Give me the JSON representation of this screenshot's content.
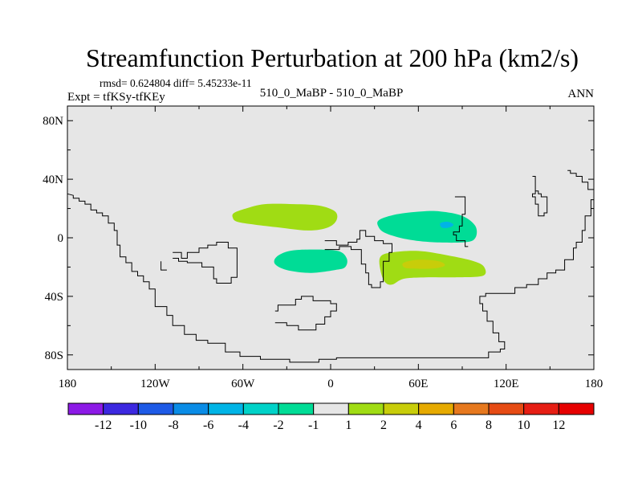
{
  "title": "Streamfunction Perturbation at 200 hPa (km2/s)",
  "stats_text": "rmsd= 0.624804  diff= 5.45233e-11",
  "left_string": "Expt = tfKSy-tfKEy",
  "center_string": "510_0_MaBP - 510_0_MaBP",
  "right_string": "ANN",
  "chart_data": {
    "type": "contour-map",
    "projection": "cylindrical-equidistant",
    "lon_range": [
      -180,
      180
    ],
    "lat_range": [
      -90,
      90
    ],
    "x_ticks": [
      {
        "lon": -180,
        "label": "180"
      },
      {
        "lon": -120,
        "label": "120W"
      },
      {
        "lon": -60,
        "label": "60W"
      },
      {
        "lon": 0,
        "label": "0"
      },
      {
        "lon": 60,
        "label": "60E"
      },
      {
        "lon": 120,
        "label": "120E"
      },
      {
        "lon": 180,
        "label": "180"
      }
    ],
    "y_ticks": [
      {
        "lat": 80,
        "label": "80N"
      },
      {
        "lat": 40,
        "label": "40N"
      },
      {
        "lat": 0,
        "label": "0"
      },
      {
        "lat": -40,
        "label": "40S"
      },
      {
        "lat": -80,
        "label": "80S"
      }
    ],
    "missing_color": "#e6e6e6",
    "colorbar": {
      "levels": [
        "-12",
        "-10",
        "-8",
        "-6",
        "-4",
        "-2",
        "-1",
        "1",
        "2",
        "4",
        "6",
        "8",
        "10",
        "12"
      ],
      "colors": [
        "#8c1ae6",
        "#3c28e0",
        "#1e5ae6",
        "#0a8ce6",
        "#00b4e6",
        "#00d2c8",
        "#00dc96",
        "#e6e6e6",
        "#a0dc14",
        "#c8cd0a",
        "#e6aa00",
        "#e6781e",
        "#e64b14",
        "#e61e14",
        "#e60000"
      ]
    },
    "regions": [
      {
        "name": "Atlantic/Africa north lobe",
        "class": "1 to 2",
        "color": "#a0dc14",
        "outline": [
          [
            -66,
            17
          ],
          [
            -58,
            20
          ],
          [
            -45,
            23
          ],
          [
            -25,
            23
          ],
          [
            -8,
            22
          ],
          [
            3,
            18
          ],
          [
            4,
            12
          ],
          [
            -2,
            7
          ],
          [
            -15,
            5
          ],
          [
            -35,
            7
          ],
          [
            -52,
            9
          ],
          [
            -64,
            11
          ],
          [
            -67,
            14
          ]
        ]
      },
      {
        "name": "Atlantic/Africa south lobe",
        "class": "-2 to -1",
        "color": "#00dc96",
        "outline": [
          [
            -37,
            -13
          ],
          [
            -28,
            -9
          ],
          [
            -12,
            -8
          ],
          [
            5,
            -9
          ],
          [
            11,
            -14
          ],
          [
            10,
            -20
          ],
          [
            3,
            -22
          ],
          [
            -14,
            -24
          ],
          [
            -30,
            -22
          ],
          [
            -38,
            -18
          ]
        ]
      },
      {
        "name": "Indian Ocean north lobe",
        "class": "-2 to -1",
        "color": "#00dc96",
        "outline": [
          [
            33,
            12
          ],
          [
            45,
            16
          ],
          [
            62,
            18
          ],
          [
            75,
            18
          ],
          [
            90,
            15
          ],
          [
            99,
            8
          ],
          [
            99,
            0
          ],
          [
            92,
            -3
          ],
          [
            70,
            -3
          ],
          [
            52,
            -1
          ],
          [
            38,
            3
          ],
          [
            33,
            7
          ]
        ]
      },
      {
        "name": "Indian Ocean north core",
        "class": "-4 to -2",
        "color": "#00b4e6",
        "outline": [
          [
            75,
            10
          ],
          [
            80,
            11
          ],
          [
            84,
            9
          ],
          [
            81,
            7
          ],
          [
            76,
            7
          ]
        ]
      },
      {
        "name": "Indian Ocean south lobe",
        "class": "1 to 2",
        "color": "#a0dc14",
        "outline": [
          [
            34,
            -13
          ],
          [
            42,
            -10
          ],
          [
            60,
            -9
          ],
          [
            80,
            -12
          ],
          [
            98,
            -16
          ],
          [
            105,
            -20
          ],
          [
            104,
            -26
          ],
          [
            85,
            -27
          ],
          [
            65,
            -27
          ],
          [
            50,
            -28
          ],
          [
            42,
            -32
          ],
          [
            37,
            -30
          ],
          [
            34,
            -22
          ]
        ]
      },
      {
        "name": "Indian Ocean south core",
        "class": "2 to 4",
        "color": "#c8cd0a",
        "outline": [
          [
            50,
            -17
          ],
          [
            60,
            -15
          ],
          [
            74,
            -16
          ],
          [
            78,
            -19
          ],
          [
            70,
            -21
          ],
          [
            55,
            -21
          ],
          [
            50,
            -20
          ]
        ]
      }
    ],
    "coastlines": [
      [
        [
          -180,
          30
        ],
        [
          -176,
          29
        ],
        [
          -176,
          27
        ],
        [
          -172,
          27
        ],
        [
          -172,
          25
        ],
        [
          -168,
          25
        ],
        [
          -168,
          23
        ],
        [
          -164,
          23
        ],
        [
          -164,
          19
        ],
        [
          -160,
          19
        ],
        [
          -160,
          17
        ],
        [
          -156,
          17
        ],
        [
          -156,
          15
        ],
        [
          -152,
          15
        ],
        [
          -152,
          10
        ],
        [
          -148,
          10
        ],
        [
          -148,
          5
        ],
        [
          -146,
          5
        ],
        [
          -146,
          -5
        ],
        [
          -144,
          -5
        ],
        [
          -144,
          -13
        ],
        [
          -140,
          -13
        ],
        [
          -140,
          -17
        ],
        [
          -136,
          -17
        ],
        [
          -136,
          -23
        ],
        [
          -132,
          -23
        ],
        [
          -132,
          -26
        ],
        [
          -128,
          -26
        ],
        [
          -128,
          -30
        ],
        [
          -124,
          -30
        ],
        [
          -124,
          -35
        ],
        [
          -120,
          -35
        ],
        [
          -120,
          -47
        ],
        [
          -112,
          -47
        ],
        [
          -112,
          -53
        ],
        [
          -108,
          -53
        ],
        [
          -108,
          -60
        ],
        [
          -100,
          -60
        ],
        [
          -100,
          -66
        ],
        [
          -92,
          -66
        ],
        [
          -92,
          -70
        ],
        [
          -84,
          -70
        ],
        [
          -84,
          -72
        ],
        [
          -72,
          -72
        ],
        [
          -72,
          -78
        ],
        [
          -62,
          -78
        ],
        [
          -62,
          -81
        ],
        [
          -48,
          -81
        ],
        [
          -48,
          -83
        ],
        [
          -28,
          -83
        ],
        [
          -28,
          -85
        ],
        [
          -8,
          -85
        ],
        [
          -8,
          -83
        ],
        [
          4,
          -83
        ],
        [
          4,
          -82
        ],
        [
          108,
          -82
        ],
        [
          108,
          -78
        ],
        [
          116,
          -78
        ],
        [
          116,
          -76
        ],
        [
          119,
          -76
        ],
        [
          119,
          -71
        ],
        [
          115,
          -71
        ],
        [
          115,
          -65
        ],
        [
          111,
          -65
        ],
        [
          111,
          -57
        ],
        [
          107,
          -57
        ],
        [
          107,
          -50
        ],
        [
          104,
          -50
        ],
        [
          104,
          -45
        ],
        [
          102,
          -45
        ],
        [
          102,
          -40
        ],
        [
          106,
          -40
        ],
        [
          106,
          -38
        ],
        [
          126,
          -38
        ],
        [
          126,
          -34
        ],
        [
          134,
          -34
        ],
        [
          134,
          -32
        ],
        [
          142,
          -32
        ],
        [
          142,
          -28
        ],
        [
          148,
          -28
        ],
        [
          148,
          -24
        ],
        [
          154,
          -24
        ],
        [
          154,
          -22
        ],
        [
          160,
          -22
        ],
        [
          160,
          -15
        ],
        [
          166,
          -15
        ],
        [
          166,
          -7
        ],
        [
          168,
          -7
        ],
        [
          168,
          -3
        ],
        [
          172,
          -3
        ],
        [
          172,
          5
        ],
        [
          174,
          5
        ],
        [
          174,
          15
        ],
        [
          178,
          15
        ],
        [
          178,
          26
        ],
        [
          180,
          26
        ]
      ],
      [
        [
          -108,
          -10
        ],
        [
          -102,
          -10
        ],
        [
          -102,
          -14
        ],
        [
          -98,
          -14
        ],
        [
          -98,
          -10
        ],
        [
          -90,
          -10
        ],
        [
          -90,
          -7
        ],
        [
          -84,
          -7
        ],
        [
          -84,
          -5
        ],
        [
          -78,
          -5
        ],
        [
          -78,
          -3
        ],
        [
          -70,
          -3
        ],
        [
          -70,
          -7
        ],
        [
          -64,
          -7
        ],
        [
          -64,
          -27
        ],
        [
          -68,
          -27
        ],
        [
          -68,
          -31
        ],
        [
          -78,
          -31
        ],
        [
          -78,
          -28
        ],
        [
          -80,
          -28
        ],
        [
          -80,
          -20
        ],
        [
          -88,
          -20
        ],
        [
          -88,
          -17
        ],
        [
          -98,
          -17
        ],
        [
          -98,
          -16
        ],
        [
          -104,
          -16
        ],
        [
          -104,
          -14
        ],
        [
          -108,
          -14
        ]
      ],
      [
        [
          -4,
          -2
        ],
        [
          4,
          -2
        ],
        [
          4,
          -5
        ],
        [
          12,
          -5
        ],
        [
          12,
          -3
        ],
        [
          18,
          -3
        ],
        [
          18,
          -1
        ],
        [
          20,
          -1
        ],
        [
          20,
          5
        ],
        [
          24,
          5
        ],
        [
          24,
          1
        ],
        [
          30,
          1
        ],
        [
          30,
          -2
        ],
        [
          36,
          -2
        ],
        [
          36,
          -4
        ],
        [
          42,
          -4
        ],
        [
          42,
          -10
        ],
        [
          40,
          -10
        ],
        [
          40,
          -16
        ],
        [
          36,
          -16
        ],
        [
          36,
          -30
        ],
        [
          34,
          -30
        ],
        [
          34,
          -34
        ],
        [
          28,
          -34
        ],
        [
          28,
          -32
        ],
        [
          26,
          -32
        ],
        [
          26,
          -24
        ],
        [
          24,
          -24
        ],
        [
          24,
          -18
        ],
        [
          21,
          -18
        ],
        [
          21,
          -8
        ],
        [
          14,
          -8
        ],
        [
          14,
          -6
        ],
        [
          6,
          -6
        ],
        [
          6,
          -8
        ],
        [
          -4,
          -8
        ]
      ],
      [
        [
          -38,
          -50
        ],
        [
          -36,
          -50
        ],
        [
          -36,
          -46
        ],
        [
          -24,
          -46
        ],
        [
          -24,
          -42
        ],
        [
          -20,
          -42
        ],
        [
          -20,
          -40
        ],
        [
          -12,
          -40
        ],
        [
          -12,
          -43
        ],
        [
          0,
          -43
        ],
        [
          0,
          -45
        ],
        [
          4,
          -45
        ],
        [
          4,
          -50
        ],
        [
          0,
          -50
        ],
        [
          0,
          -54
        ],
        [
          -4,
          -54
        ],
        [
          -4,
          -59
        ],
        [
          -10,
          -59
        ],
        [
          -10,
          -63
        ],
        [
          -22,
          -63
        ],
        [
          -22,
          -60
        ],
        [
          -30,
          -60
        ],
        [
          -30,
          -58
        ],
        [
          -38,
          -58
        ]
      ],
      [
        [
          138,
          42
        ],
        [
          140,
          42
        ],
        [
          140,
          30
        ],
        [
          138,
          30
        ],
        [
          138,
          28
        ],
        [
          140,
          28
        ],
        [
          140,
          23
        ],
        [
          142,
          23
        ],
        [
          142,
          15
        ],
        [
          146,
          15
        ],
        [
          146,
          17
        ],
        [
          148,
          17
        ],
        [
          148,
          28
        ],
        [
          144,
          28
        ],
        [
          144,
          30
        ],
        [
          142,
          30
        ],
        [
          142,
          32
        ],
        [
          140,
          32
        ]
      ],
      [
        [
          162,
          46
        ],
        [
          164,
          46
        ],
        [
          164,
          44
        ],
        [
          168,
          44
        ],
        [
          168,
          42
        ],
        [
          172,
          42
        ],
        [
          172,
          38
        ],
        [
          176,
          38
        ],
        [
          176,
          33
        ],
        [
          180,
          33
        ]
      ],
      [
        [
          85,
          28
        ],
        [
          92,
          28
        ],
        [
          92,
          16
        ],
        [
          90,
          16
        ],
        [
          90,
          8
        ],
        [
          88,
          8
        ],
        [
          88,
          4
        ],
        [
          84,
          4
        ],
        [
          84,
          2
        ],
        [
          86,
          2
        ],
        [
          86,
          -2
        ],
        [
          88,
          -2
        ]
      ],
      [
        [
          88,
          -2
        ],
        [
          92,
          -2
        ],
        [
          92,
          -6
        ],
        [
          94,
          -6
        ]
      ],
      [
        [
          -116,
          -16
        ],
        [
          -116,
          -22
        ],
        [
          -112,
          -22
        ]
      ]
    ]
  }
}
